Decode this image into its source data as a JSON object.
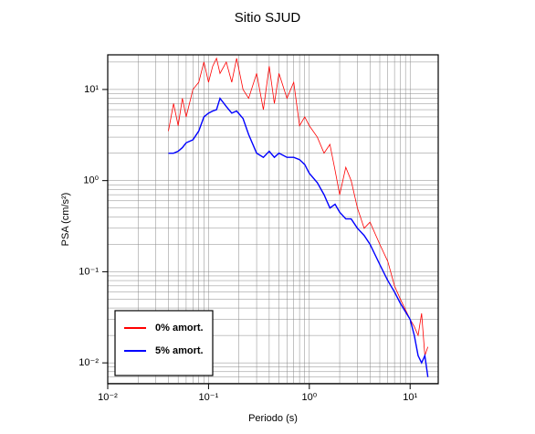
{
  "chart_data": {
    "type": "line",
    "title": "Sitio SJUD",
    "xlabel": "Periodo (s)",
    "ylabel": "PSA (cm/s²)",
    "xscale": "log",
    "yscale": "log",
    "grid": true,
    "minor_grid": true,
    "legend": "lower left",
    "xlim": [
      0.01,
      19
    ],
    "ylim": [
      0.0059,
      24
    ],
    "xticks": [
      {
        "value": 0.01,
        "label": "10⁻²"
      },
      {
        "value": 0.1,
        "label": "10⁻¹"
      },
      {
        "value": 1,
        "label": "10⁰"
      },
      {
        "value": 10,
        "label": "10¹"
      }
    ],
    "yticks": [
      {
        "value": 0.01,
        "label": "10⁻²"
      },
      {
        "value": 0.1,
        "label": "10⁻¹"
      },
      {
        "value": 1,
        "label": "10⁰"
      },
      {
        "value": 10,
        "label": "10¹"
      }
    ],
    "x": [
      0.04,
      0.045,
      0.05,
      0.055,
      0.06,
      0.07,
      0.08,
      0.09,
      0.1,
      0.11,
      0.12,
      0.13,
      0.15,
      0.17,
      0.19,
      0.22,
      0.25,
      0.3,
      0.35,
      0.4,
      0.45,
      0.5,
      0.6,
      0.7,
      0.8,
      0.9,
      1.0,
      1.2,
      1.4,
      1.6,
      1.8,
      2.0,
      2.3,
      2.6,
      3,
      3.5,
      4,
      5,
      6,
      7,
      8,
      10,
      11,
      12,
      13,
      14,
      15
    ],
    "series": [
      {
        "name": "0% amort.",
        "color": "#ff0000",
        "width": 0.8,
        "values": [
          3.5,
          7,
          4,
          8,
          5,
          10,
          12,
          20,
          12,
          18,
          22,
          15,
          20,
          12,
          22,
          10,
          8,
          15,
          6,
          18,
          7,
          15,
          8,
          12,
          4,
          5,
          4,
          3,
          2,
          2.5,
          1.3,
          0.7,
          1.4,
          1.0,
          0.5,
          0.3,
          0.35,
          0.2,
          0.13,
          0.07,
          0.05,
          0.03,
          0.025,
          0.02,
          0.035,
          0.012,
          0.015
        ]
      },
      {
        "name": "5% amort.",
        "color": "#0000ff",
        "width": 1.4,
        "values": [
          2.0,
          2.0,
          2.1,
          2.3,
          2.6,
          2.8,
          3.5,
          5,
          5.5,
          5.8,
          6,
          8,
          6.5,
          5.5,
          5.8,
          4.8,
          3.2,
          2.0,
          1.8,
          2.1,
          1.8,
          2.0,
          1.8,
          1.8,
          1.7,
          1.5,
          1.2,
          0.95,
          0.7,
          0.5,
          0.55,
          0.45,
          0.38,
          0.38,
          0.3,
          0.25,
          0.2,
          0.12,
          0.08,
          0.06,
          0.045,
          0.03,
          0.02,
          0.012,
          0.01,
          0.012,
          0.007
        ]
      }
    ]
  }
}
